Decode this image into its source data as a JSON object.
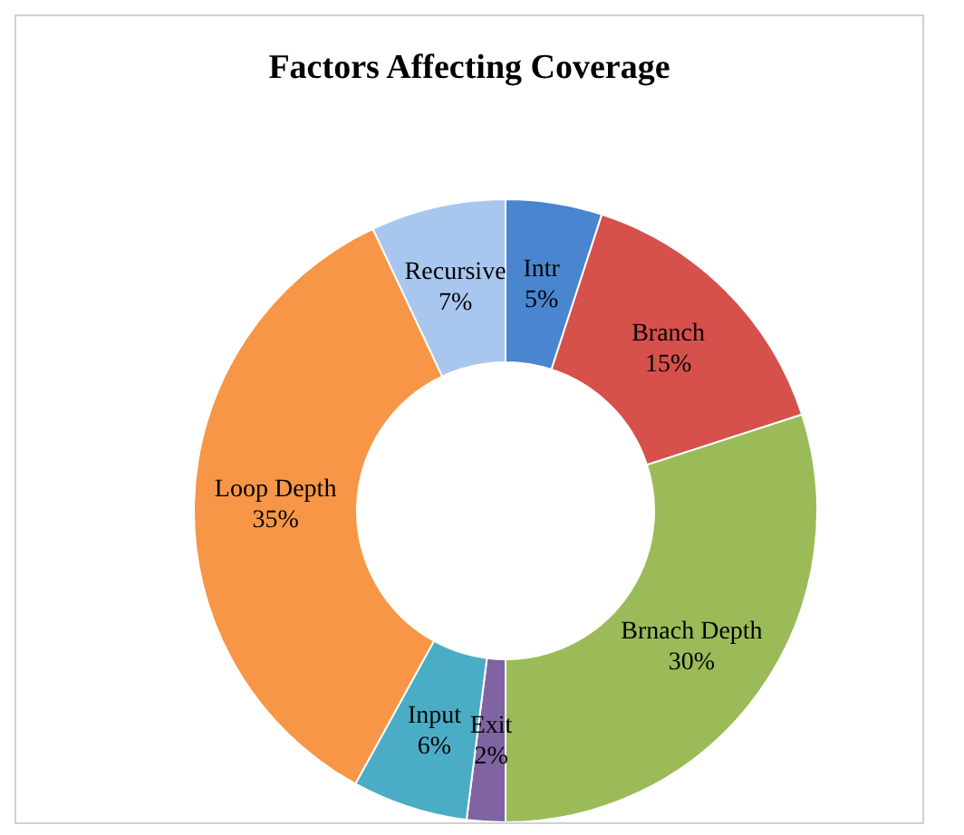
{
  "chart_data": {
    "type": "donut",
    "title": "Factors Affecting Coverage",
    "categories": [
      "Intr",
      "Branch",
      "Brnach Depth",
      "Exit",
      "Input",
      "Loop Depth",
      "Recursive"
    ],
    "values": [
      5,
      15,
      30,
      2,
      6,
      35,
      7
    ],
    "value_labels": [
      "5%",
      "15%",
      "30%",
      "2%",
      "6%",
      "35%",
      "7%"
    ],
    "colors": [
      "#4a86d0",
      "#d6504c",
      "#9bbb59",
      "#8064a2",
      "#4bacc6",
      "#f79646",
      "#a9c6ee"
    ],
    "legend": false
  }
}
